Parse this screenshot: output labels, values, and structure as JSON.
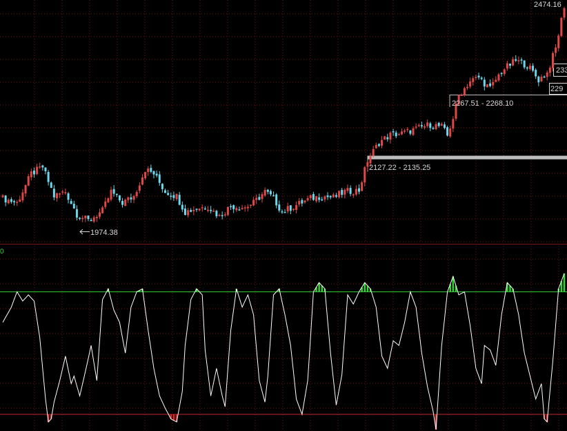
{
  "colors": {
    "background": "#000000",
    "up_candle": "#e04848",
    "down_candle": "#6cd8ec",
    "grid": "#7a1515",
    "label_text": "#d8d8d8",
    "separator": "#7a1515",
    "oscillator_line": "#ffffff",
    "overbought_line": "#2fcf2f",
    "oversold_line": "#c82828",
    "overbought_fill": "#2fd82f",
    "oversold_fill": "#e02828",
    "support_band": "#bdbdbd"
  },
  "chart_data": [
    {
      "type": "candlestick",
      "title": "",
      "xlabel": "",
      "ylabel": "",
      "ylim": [
        1940,
        2480
      ],
      "grid": true,
      "annotations": [
        {
          "text": "2474.16"
        },
        {
          "text": "1974.38"
        },
        {
          "text": "2127.22 - 2135.25"
        },
        {
          "text": "2267.51 - 2268.10"
        },
        {
          "text": "233"
        },
        {
          "text": "229"
        }
      ],
      "support_band": [
        2127.22,
        2135.25
      ],
      "anchors_close": [
        [
          0,
          2040
        ],
        [
          5,
          2030
        ],
        [
          10,
          2095
        ],
        [
          14,
          2110
        ],
        [
          18,
          2045
        ],
        [
          22,
          2055
        ],
        [
          26,
          2005
        ],
        [
          30,
          1990
        ],
        [
          35,
          2012
        ],
        [
          38,
          2055
        ],
        [
          42,
          2030
        ],
        [
          46,
          2045
        ],
        [
          50,
          2105
        ],
        [
          53,
          2095
        ],
        [
          57,
          2055
        ],
        [
          61,
          2045
        ],
        [
          64,
          2010
        ],
        [
          68,
          2018
        ],
        [
          72,
          2022
        ],
        [
          76,
          2000
        ],
        [
          80,
          2023
        ],
        [
          85,
          2020
        ],
        [
          88,
          2030
        ],
        [
          92,
          2055
        ],
        [
          95,
          2040
        ],
        [
          98,
          2010
        ],
        [
          103,
          2025
        ],
        [
          108,
          2040
        ],
        [
          112,
          2045
        ],
        [
          116,
          2042
        ],
        [
          120,
          2055
        ],
        [
          125,
          2058
        ],
        [
          128,
          2125
        ],
        [
          132,
          2165
        ],
        [
          136,
          2182
        ],
        [
          140,
          2185
        ],
        [
          145,
          2195
        ],
        [
          150,
          2205
        ],
        [
          154,
          2200
        ],
        [
          156,
          2180
        ],
        [
          158,
          2220
        ],
        [
          160,
          2270
        ],
        [
          164,
          2302
        ],
        [
          167,
          2310
        ],
        [
          171,
          2285
        ],
        [
          175,
          2325
        ],
        [
          180,
          2348
        ],
        [
          184,
          2338
        ],
        [
          188,
          2305
        ],
        [
          191,
          2320
        ],
        [
          194,
          2375
        ],
        [
          197,
          2470
        ]
      ]
    },
    {
      "type": "line",
      "title": "",
      "xlabel": "",
      "ylabel": "",
      "legend_fragment": "0",
      "ylim": [
        -10,
        110
      ],
      "overbought_level": 80,
      "oversold_level": 0,
      "anchors": [
        [
          0,
          60
        ],
        [
          3,
          70
        ],
        [
          5,
          80
        ],
        [
          7,
          74
        ],
        [
          9,
          78
        ],
        [
          11,
          74
        ],
        [
          13,
          50
        ],
        [
          15,
          10
        ],
        [
          16,
          -5
        ],
        [
          17,
          -3
        ],
        [
          18,
          8
        ],
        [
          20,
          22
        ],
        [
          22,
          38
        ],
        [
          24,
          20
        ],
        [
          25,
          25
        ],
        [
          27,
          12
        ],
        [
          29,
          28
        ],
        [
          31,
          45
        ],
        [
          33,
          22
        ],
        [
          35,
          75
        ],
        [
          37,
          82
        ],
        [
          39,
          68
        ],
        [
          41,
          60
        ],
        [
          43,
          40
        ],
        [
          45,
          70
        ],
        [
          47,
          80
        ],
        [
          49,
          82
        ],
        [
          51,
          55
        ],
        [
          53,
          30
        ],
        [
          55,
          12
        ],
        [
          57,
          4
        ],
        [
          59,
          -3
        ],
        [
          61,
          -5
        ],
        [
          63,
          15
        ],
        [
          64,
          45
        ],
        [
          66,
          75
        ],
        [
          68,
          82
        ],
        [
          70,
          78
        ],
        [
          71,
          42
        ],
        [
          73,
          12
        ],
        [
          75,
          30
        ],
        [
          77,
          12
        ],
        [
          78,
          5
        ],
        [
          80,
          55
        ],
        [
          82,
          82
        ],
        [
          84,
          70
        ],
        [
          86,
          78
        ],
        [
          88,
          65
        ],
        [
          90,
          22
        ],
        [
          92,
          8
        ],
        [
          93,
          25
        ],
        [
          95,
          78
        ],
        [
          97,
          82
        ],
        [
          99,
          65
        ],
        [
          101,
          45
        ],
        [
          103,
          10
        ],
        [
          105,
          0
        ],
        [
          107,
          22
        ],
        [
          109,
          80
        ],
        [
          111,
          86
        ],
        [
          113,
          82
        ],
        [
          115,
          40
        ],
        [
          117,
          6
        ],
        [
          119,
          26
        ],
        [
          121,
          78
        ],
        [
          123,
          72
        ],
        [
          125,
          80
        ],
        [
          127,
          86
        ],
        [
          129,
          82
        ],
        [
          131,
          70
        ],
        [
          133,
          38
        ],
        [
          135,
          30
        ],
        [
          137,
          48
        ],
        [
          139,
          45
        ],
        [
          141,
          60
        ],
        [
          143,
          80
        ],
        [
          145,
          70
        ],
        [
          147,
          40
        ],
        [
          149,
          18
        ],
        [
          151,
          2
        ],
        [
          152,
          -10
        ],
        [
          154,
          45
        ],
        [
          156,
          80
        ],
        [
          158,
          90
        ],
        [
          160,
          78
        ],
        [
          162,
          80
        ],
        [
          164,
          58
        ],
        [
          166,
          30
        ],
        [
          168,
          20
        ],
        [
          169,
          45
        ],
        [
          171,
          42
        ],
        [
          173,
          32
        ],
        [
          175,
          65
        ],
        [
          177,
          86
        ],
        [
          179,
          82
        ],
        [
          181,
          65
        ],
        [
          183,
          40
        ],
        [
          185,
          25
        ],
        [
          187,
          10
        ],
        [
          189,
          20
        ],
        [
          190,
          -3
        ],
        [
          191,
          -5
        ],
        [
          193,
          35
        ],
        [
          195,
          82
        ],
        [
          197,
          92
        ]
      ]
    }
  ]
}
